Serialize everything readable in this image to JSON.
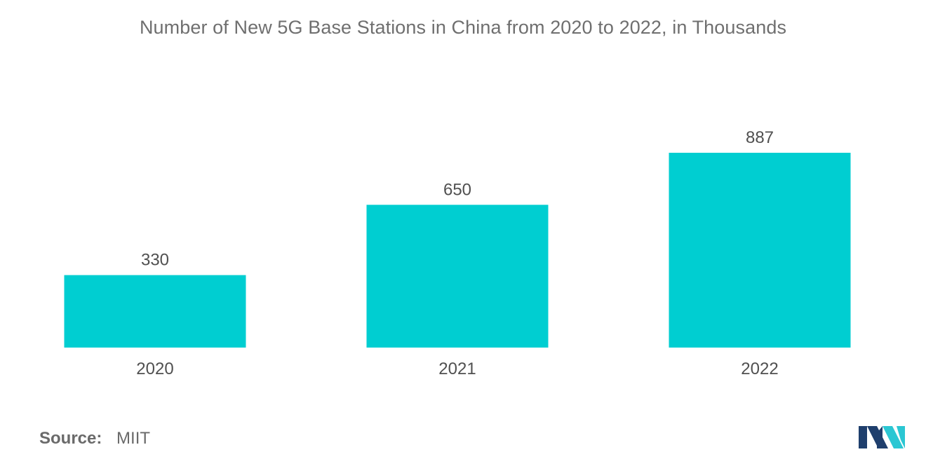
{
  "chart_data": {
    "type": "bar",
    "title": "Number of New 5G Base Stations in China from 2020 to 2022, in Thousands",
    "categories": [
      "2020",
      "2021",
      "2022"
    ],
    "values": [
      330,
      650,
      887
    ],
    "data_labels": [
      "330",
      "650",
      "887"
    ],
    "xlabel": "",
    "ylabel": "",
    "ylim": [
      0,
      887
    ],
    "grid": false,
    "legend": "none",
    "bar_color": "#00ced1"
  },
  "source": {
    "label": "Source:",
    "value": "MIIT"
  },
  "logo": {
    "icon": "mordor-intelligence-logo-icon",
    "colors": [
      "#1f3f6d",
      "#2bc7d3"
    ]
  }
}
